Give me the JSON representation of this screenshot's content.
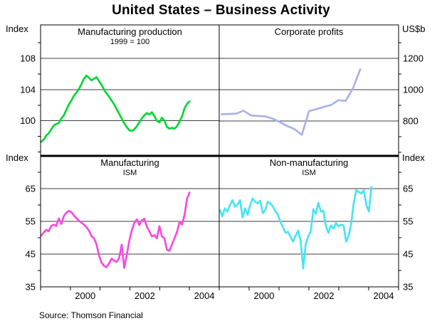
{
  "page": {
    "title": "United States – Business Activity",
    "source": "Source: Thomson Financial"
  },
  "axis_corner_labels": {
    "top_left": "Index",
    "top_right": "US$b",
    "mid_left": "Index",
    "mid_right": "Index"
  },
  "x_axis": {
    "xlim": [
      1999,
      2005
    ],
    "tick_years": [
      1999,
      2000,
      2001,
      2002,
      2003,
      2004,
      2005
    ],
    "labels": [
      "2000",
      "2002",
      "2004"
    ],
    "label_positions": [
      2000.5,
      2002.5,
      2004.5
    ]
  },
  "chart_data": [
    {
      "type": "line",
      "panel": "top-left",
      "title": "Manufacturing production",
      "subtitle": "1999 = 100",
      "unit_label": "Index",
      "color": "#00d832",
      "ylim": [
        95.5,
        112.3
      ],
      "yticks": [
        100,
        104,
        108
      ],
      "yticks_minor": [
        96,
        98,
        102,
        106,
        110
      ],
      "x_start": 1999.02,
      "x_step": 0.0845,
      "values": [
        97.3,
        97.6,
        98.1,
        98.4,
        98.9,
        99.4,
        99.6,
        99.7,
        100.3,
        100.7,
        101.4,
        102.1,
        102.6,
        103.2,
        103.6,
        104.1,
        104.7,
        105.4,
        105.8,
        105.5,
        105.2,
        105.4,
        105.6,
        105.1,
        104.6,
        104.0,
        103.5,
        103.1,
        102.6,
        102.1,
        101.5,
        100.9,
        100.3,
        99.7,
        99.2,
        98.8,
        98.7,
        98.9,
        99.3,
        99.8,
        100.3,
        100.7,
        101.0,
        100.8,
        101.1,
        100.6,
        100.0,
        99.8,
        100.4,
        100.0,
        99.2,
        99.0,
        99.1,
        99.0,
        99.3,
        99.9,
        100.6,
        101.6,
        102.2,
        102.5
      ]
    },
    {
      "type": "line",
      "panel": "top-right",
      "title": "Corporate profits",
      "subtitle": "",
      "unit_label": "US$b",
      "color": "#aab2e8",
      "ylim": [
        577,
        1414
      ],
      "yticks": [
        800,
        1000,
        1200
      ],
      "yticks_minor": [
        600,
        700,
        900,
        1100,
        1300
      ],
      "x_start": 1999.08,
      "x_step": 0.244,
      "values": [
        843,
        845,
        847,
        866,
        836,
        832,
        829,
        815,
        793,
        768,
        748,
        712,
        864,
        876,
        890,
        902,
        933,
        928,
        1008,
        1130
      ]
    },
    {
      "type": "line",
      "panel": "bottom-left",
      "title": "Manufacturing",
      "subtitle": "ISM",
      "unit_label": "Index",
      "color": "#f84ade",
      "ylim": [
        35,
        75
      ],
      "yticks": [
        65,
        55,
        45,
        35
      ],
      "yticks_minor": [
        40,
        50,
        60,
        70
      ],
      "x_start": 1999.02,
      "x_step": 0.0845,
      "values": [
        50.6,
        51.6,
        52.4,
        52.0,
        53.6,
        54.0,
        53.6,
        55.9,
        54.2,
        56.6,
        57.6,
        58.2,
        57.8,
        56.8,
        56.0,
        55.2,
        54.6,
        54.0,
        53.2,
        52.2,
        50.5,
        49.8,
        48.0,
        44.6,
        42.4,
        41.4,
        41.0,
        42.2,
        43.6,
        43.0,
        42.6,
        43.8,
        47.9,
        40.8,
        44.6,
        49.0,
        52.2,
        54.5,
        55.6,
        53.9,
        55.3,
        55.8,
        53.4,
        52.0,
        50.4,
        50.8,
        49.8,
        53.5,
        50.4,
        49.8,
        46.3,
        46.0,
        48.0,
        49.9,
        51.8,
        54.8,
        54.0,
        57.0,
        62.0,
        63.8
      ]
    },
    {
      "type": "line",
      "panel": "bottom-right",
      "title": "Non-manufacturing",
      "subtitle": "ISM",
      "unit_label": "Index",
      "color": "#48e4f6",
      "ylim": [
        35,
        75
      ],
      "yticks": [
        65,
        55,
        45,
        35
      ],
      "yticks_minor": [
        40,
        50,
        60,
        70
      ],
      "x_start": 1999.02,
      "x_step": 0.0845,
      "values": [
        58.5,
        56.5,
        59.0,
        58.0,
        60.0,
        61.5,
        59.5,
        60.0,
        61.5,
        56.2,
        59.0,
        57.0,
        60.0,
        62.0,
        61.0,
        60.5,
        61.3,
        57.5,
        58.5,
        61.0,
        60.5,
        59.5,
        58.0,
        57.0,
        54.8,
        53.2,
        51.5,
        51.8,
        50.2,
        48.8,
        50.6,
        52.2,
        49.0,
        40.6,
        48.0,
        50.5,
        52.0,
        58.7,
        57.3,
        60.6,
        58.0,
        58.3,
        53.5,
        51.5,
        53.8,
        52.8,
        54.5,
        53.5,
        54.0,
        53.8,
        48.8,
        50.5,
        54.3,
        60.5,
        64.5,
        64.0,
        63.5,
        64.5,
        60.0,
        58.0,
        65.5
      ]
    }
  ]
}
